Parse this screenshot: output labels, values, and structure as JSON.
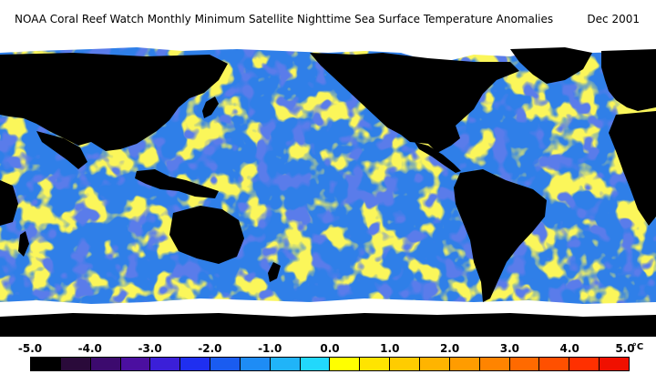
{
  "header": {
    "title": "NOAA Coral Reef Watch Monthly Minimum Satellite Nighttime Sea Surface Temperature Anomalies",
    "date": "Dec 2001"
  },
  "legend": {
    "unit": "°C",
    "tick_labels": [
      "-5.0",
      "-4.0",
      "-3.0",
      "-2.0",
      "-1.0",
      "0.0",
      "1.0",
      "2.0",
      "3.0",
      "4.0",
      "5.0"
    ],
    "colors": [
      "#000000",
      "#2a0a3a",
      "#3c0a6e",
      "#4b0fa0",
      "#3b1fd8",
      "#1f2ff0",
      "#1a5cf0",
      "#1e8cf5",
      "#20b4f8",
      "#22d8fc",
      "#ffff00",
      "#ffe400",
      "#ffcc00",
      "#ffb400",
      "#ff9c00",
      "#ff8400",
      "#ff6a00",
      "#ff5000",
      "#ff3000",
      "#f01000"
    ]
  },
  "map": {
    "land_color": "#000000",
    "ice_color": "#ffffff",
    "ocean_base_color": "#2f7fe8",
    "warm_anomaly_color": "#f8ec20",
    "cool_anomaly_color": "#1830d0"
  }
}
